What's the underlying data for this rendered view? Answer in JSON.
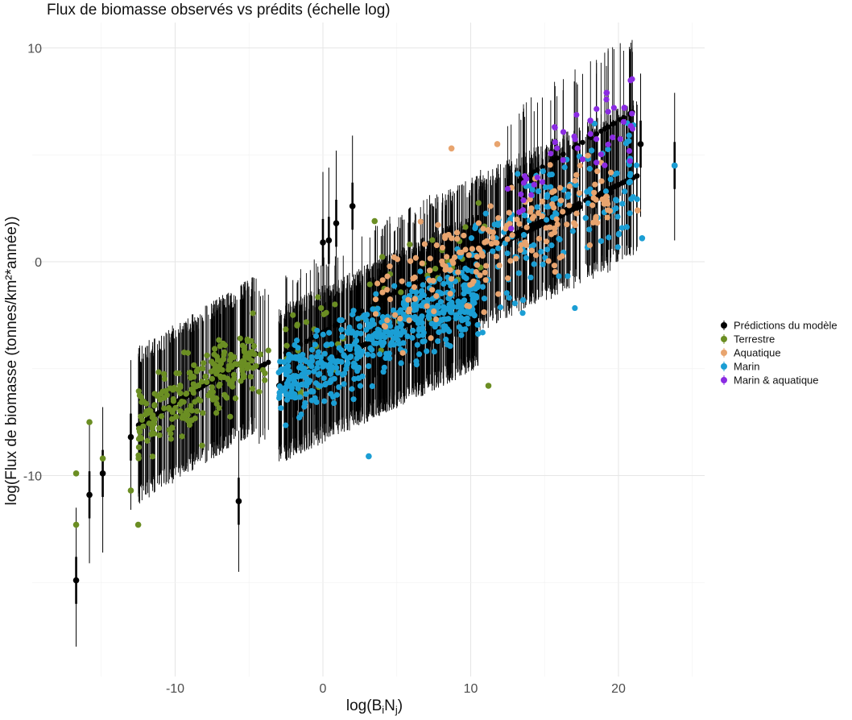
{
  "chart_data": {
    "type": "scatter",
    "title": "Flux de biomasse observés vs prédits (échelle log)",
    "xlabel": "log(B",
    "xlabel_sub_i": "i",
    "xlabel_mid": "N",
    "xlabel_sub_j": "j",
    "xlabel_close": ")",
    "ylabel": "log(Flux de biomasse (tonnes/km²*année))",
    "xlim": [
      -18.5,
      25.5
    ],
    "ylim": [
      -19,
      10.5
    ],
    "x_ticks": [
      -10,
      0,
      10,
      20
    ],
    "x_tick_labels": [
      "-10",
      "0",
      "10",
      "20"
    ],
    "y_ticks": [
      -10,
      0,
      10
    ],
    "y_tick_labels": [
      "-10",
      "0",
      "10"
    ],
    "grid": true,
    "legend_position": "right",
    "series": [
      {
        "name": "Prédictions du modèle",
        "color": "#000000",
        "style": "pointrange",
        "note_points": [
          {
            "x": -16.7,
            "y": -14.9,
            "lo": -18.0,
            "hi": -11.5
          },
          {
            "x": -15.8,
            "y": -10.9,
            "lo": -14.1,
            "hi": -7.6
          },
          {
            "x": -14.9,
            "y": -9.9,
            "lo": -13.6,
            "hi": -6.8
          },
          {
            "x": -13.0,
            "y": -8.2,
            "lo": -11.6,
            "hi": -4.6
          },
          {
            "x": -5.7,
            "y": -11.2,
            "lo": -14.5,
            "hi": -7.9
          },
          {
            "x": 0.0,
            "y": 0.9,
            "lo": -2.3,
            "hi": 4.2
          },
          {
            "x": 0.4,
            "y": 1.0,
            "lo": -2.2,
            "hi": 4.4
          },
          {
            "x": 0.9,
            "y": 1.8,
            "lo": -1.6,
            "hi": 5.2
          },
          {
            "x": 2.0,
            "y": 2.6,
            "lo": -0.7,
            "hi": 5.9
          },
          {
            "x": 21.5,
            "y": 5.5,
            "lo": 2.1,
            "hi": 8.8
          },
          {
            "x": 23.8,
            "y": 4.5,
            "lo": 1.0,
            "hi": 7.9
          }
        ]
      },
      {
        "name": "Terrestre",
        "color": "#6b8e23",
        "note_points": [
          {
            "x": -16.7,
            "y": -9.9
          },
          {
            "x": -16.7,
            "y": -12.3
          },
          {
            "x": -15.8,
            "y": -7.5
          },
          {
            "x": -14.9,
            "y": -9.2
          },
          {
            "x": -13.0,
            "y": -10.7
          },
          {
            "x": -12.5,
            "y": -12.3
          },
          {
            "x": 11.2,
            "y": -5.8
          },
          {
            "x": 3.5,
            "y": 1.9
          }
        ]
      },
      {
        "name": "Aquatique",
        "color": "#e8a46e",
        "note_points": [
          {
            "x": 8.7,
            "y": 5.3
          },
          {
            "x": 11.8,
            "y": 5.5
          },
          {
            "x": 21.3,
            "y": 2.4
          }
        ]
      },
      {
        "name": "Marin",
        "color": "#1b9ed4",
        "note_points": [
          {
            "x": 23.8,
            "y": 4.5
          },
          {
            "x": 21.6,
            "y": 1.1
          },
          {
            "x": 3.1,
            "y": -9.1
          }
        ]
      },
      {
        "name": "Marin & aquatique",
        "color": "#8a2be2",
        "note_points": [
          {
            "x": 19.2,
            "y": 7.9
          },
          {
            "x": 20.4,
            "y": 7.2
          },
          {
            "x": 18.1,
            "y": 6.6
          }
        ]
      }
    ]
  }
}
